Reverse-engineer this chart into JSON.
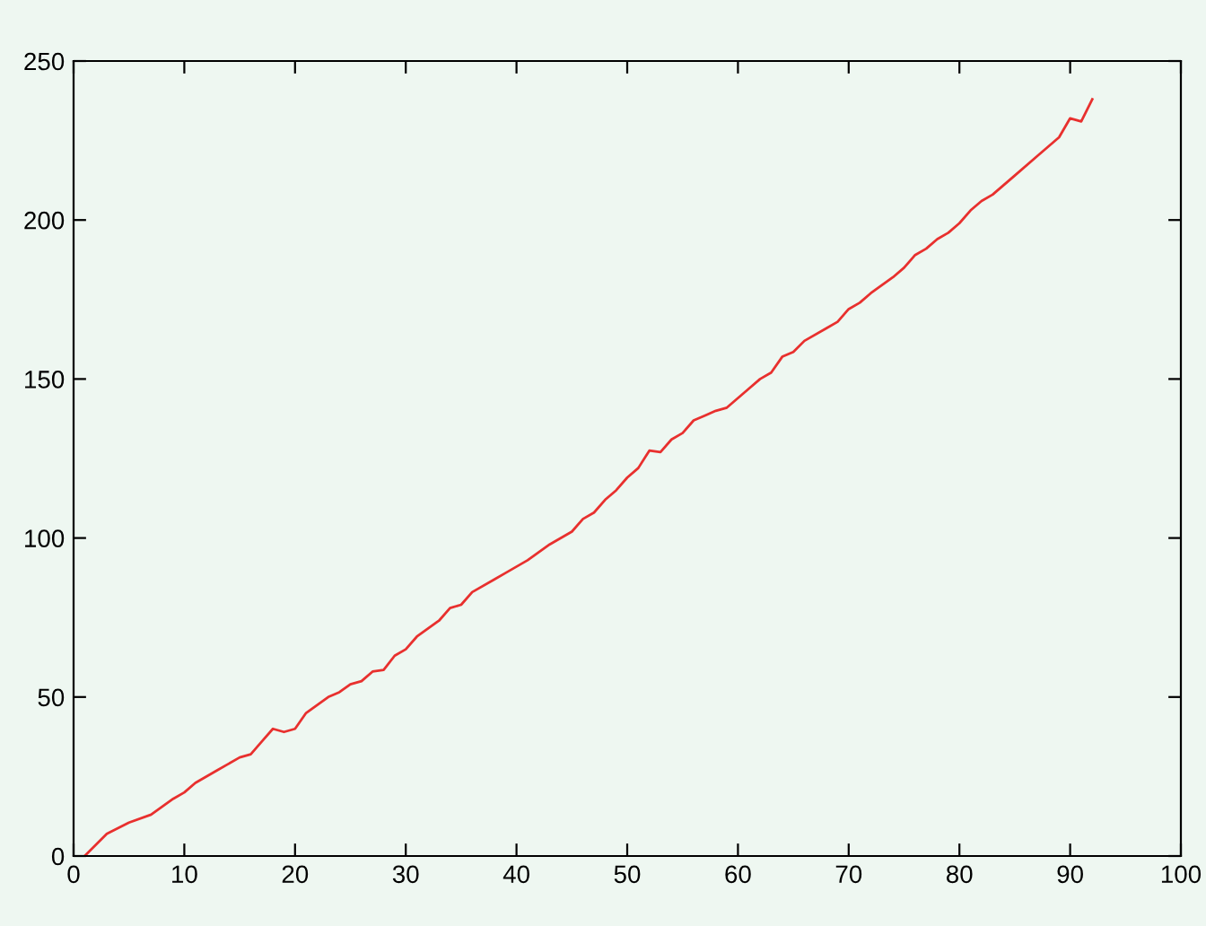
{
  "chart_data": {
    "type": "line",
    "x": [
      1,
      3,
      5,
      7,
      9,
      10,
      11,
      13,
      15,
      16,
      17,
      18,
      19,
      20,
      21,
      23,
      24,
      25,
      26,
      27,
      28,
      29,
      30,
      31,
      33,
      34,
      35,
      36,
      38,
      39,
      41,
      43,
      45,
      46,
      47,
      48,
      49,
      50,
      51,
      52,
      53,
      54,
      55,
      56,
      57,
      58,
      59,
      61,
      62,
      63,
      64,
      65,
      66,
      68,
      69,
      70,
      71,
      72,
      74,
      75,
      76,
      77,
      78,
      79,
      80,
      81,
      82,
      83,
      85,
      87,
      89,
      90,
      91,
      92
    ],
    "series": [
      {
        "color": "#e8302e",
        "values": [
          0,
          7,
          10.5,
          13,
          18,
          20,
          23,
          27,
          31,
          32,
          36,
          40,
          39,
          40,
          45,
          50,
          51.5,
          54,
          55,
          58,
          58.5,
          63,
          65,
          69,
          74,
          78,
          79,
          83,
          87,
          89,
          93,
          98,
          102,
          106,
          108,
          112,
          115,
          119,
          122,
          127.5,
          127,
          131,
          133,
          137,
          138.5,
          140,
          141,
          147,
          150,
          152,
          157,
          158.5,
          162,
          166,
          168,
          172,
          174,
          177,
          182,
          185,
          189,
          191,
          194,
          196,
          199,
          203,
          206,
          208,
          214,
          220,
          226,
          232,
          231,
          238
        ]
      }
    ],
    "xlim": [
      0,
      100
    ],
    "xticks": [
      0,
      10,
      20,
      30,
      40,
      50,
      60,
      70,
      80,
      90,
      100
    ],
    "ylim": [
      0,
      250
    ],
    "yticks": [
      0,
      50,
      100,
      150,
      200,
      250
    ],
    "grid": false,
    "legend": false,
    "marker": "none",
    "line_style": "solid"
  }
}
